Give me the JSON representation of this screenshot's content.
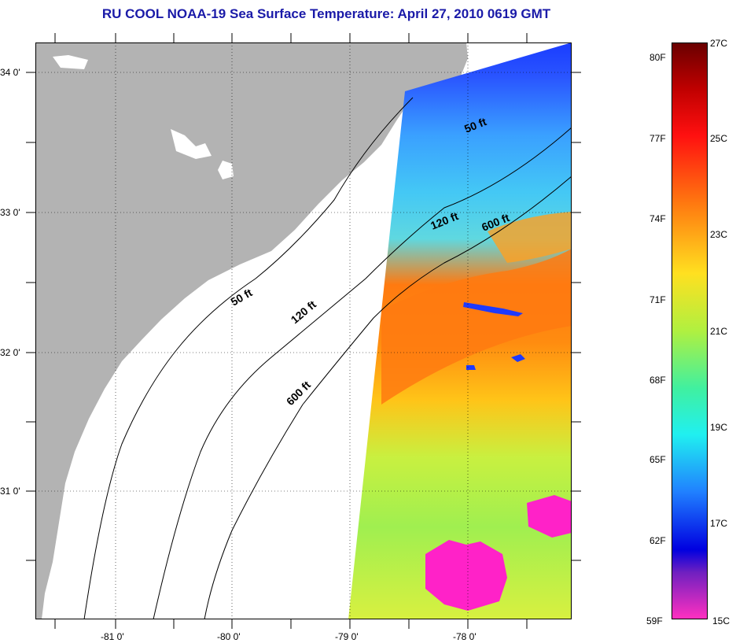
{
  "title": "RU COOL  NOAA-19  Sea Surface Temperature:  April 27, 2010 0619 GMT",
  "lat_labels": [
    "34 0'",
    "33 0'",
    "32 0'",
    "31 0'"
  ],
  "lon_labels": [
    "-81 0'",
    "-80 0'",
    "-79 0'",
    "-78 0'"
  ],
  "isobaths": {
    "shallow": "50 ft",
    "mid": "120 ft",
    "deep": "600 ft"
  },
  "colorbar": {
    "fahrenheit": [
      "80F",
      "77F",
      "74F",
      "71F",
      "68F",
      "65F",
      "62F",
      "59F"
    ],
    "celsius": [
      "27C",
      "25C",
      "23C",
      "21C",
      "19C",
      "17C",
      "15C"
    ]
  },
  "colors": {
    "land": "#b3b3b3",
    "title": "#1a1aa8",
    "cloud": "#ff22c8"
  }
}
